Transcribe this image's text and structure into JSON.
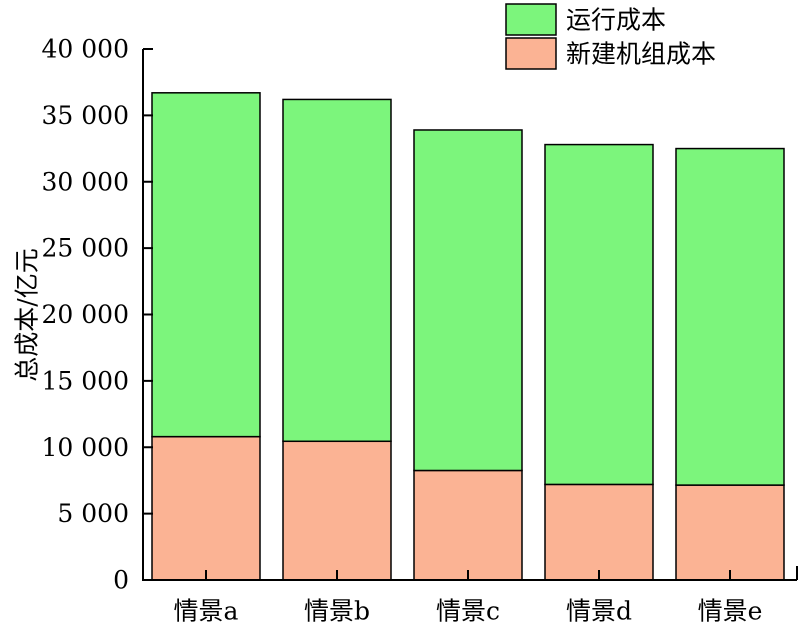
{
  "chart_data": {
    "type": "bar",
    "stacked": true,
    "categories": [
      "情景a",
      "情景b",
      "情景c",
      "情景d",
      "情景e"
    ],
    "series": [
      {
        "name": "新建机组成本",
        "color": "#FBB394",
        "values": [
          10800,
          10450,
          8250,
          7200,
          7150
        ]
      },
      {
        "name": "运行成本",
        "color": "#7CF57C",
        "values": [
          25900,
          25750,
          25650,
          25600,
          25350
        ]
      }
    ],
    "xlabel": "",
    "ylabel": "总成本/亿元",
    "ylim": [
      0,
      40000
    ],
    "yticks": [
      0,
      5000,
      10000,
      15000,
      20000,
      25000,
      30000,
      35000,
      40000
    ],
    "ytick_labels": [
      "0",
      "5 000",
      "10 000",
      "15 000",
      "20 000",
      "25 000",
      "30 000",
      "35 000",
      "40 000"
    ],
    "legend_position": "top-right",
    "legend_order": [
      "运行成本",
      "新建机组成本"
    ],
    "grid": false
  }
}
